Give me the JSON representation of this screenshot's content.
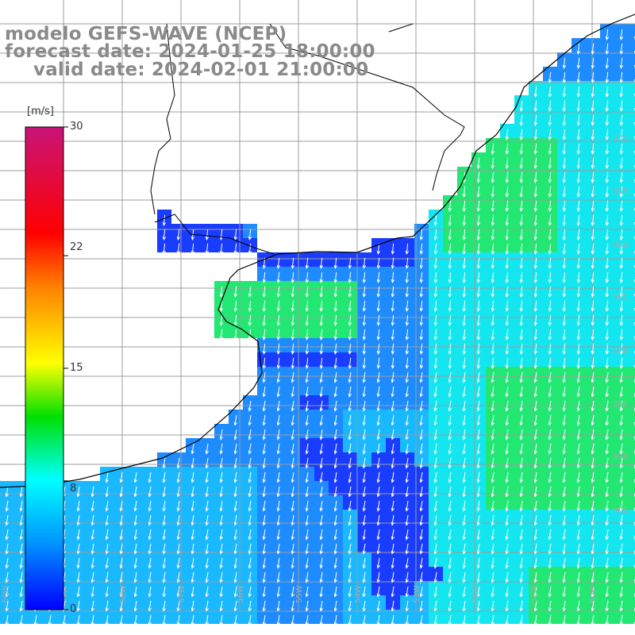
{
  "header": {
    "model": "modelo GEFS-WAVE (NCEP)",
    "forecast": "forecast date: 2024-01-25 18:00:00",
    "valid": "valid date: 2024-02-01 21:00:00"
  },
  "colorbar": {
    "unit": "[m/s]",
    "ticks": [
      {
        "label": "30",
        "value": 30
      },
      {
        "label": "22",
        "value": 22
      },
      {
        "label": "15",
        "value": 15
      },
      {
        "label": "8",
        "value": 8
      },
      {
        "label": "0",
        "value": 0
      }
    ],
    "colors": [
      "#0000ff",
      "#0096ff",
      "#00ffff",
      "#00ff00",
      "#ffff00",
      "#ff8000",
      "#ff0000",
      "#c81478"
    ]
  },
  "map": {
    "latitude_labels": [
      "33S",
      "34S",
      "35S",
      "36S",
      "37S",
      "38S",
      "39S",
      "40S"
    ],
    "longitude_labels": [
      "60W",
      "59W",
      "58W",
      "57W",
      "56W",
      "55W",
      "54W",
      "53W",
      "52W",
      "51W",
      "50W"
    ],
    "ocean_colors": {
      "deep_blue": "#1a3cff",
      "blue": "#1e8cff",
      "light_blue": "#19b8ff",
      "cyan": "#14e6f0",
      "green": "#22e873",
      "land": "#ffffff",
      "coast": "#000000",
      "grid": "#999999",
      "arrow": "#ffffff"
    }
  }
}
